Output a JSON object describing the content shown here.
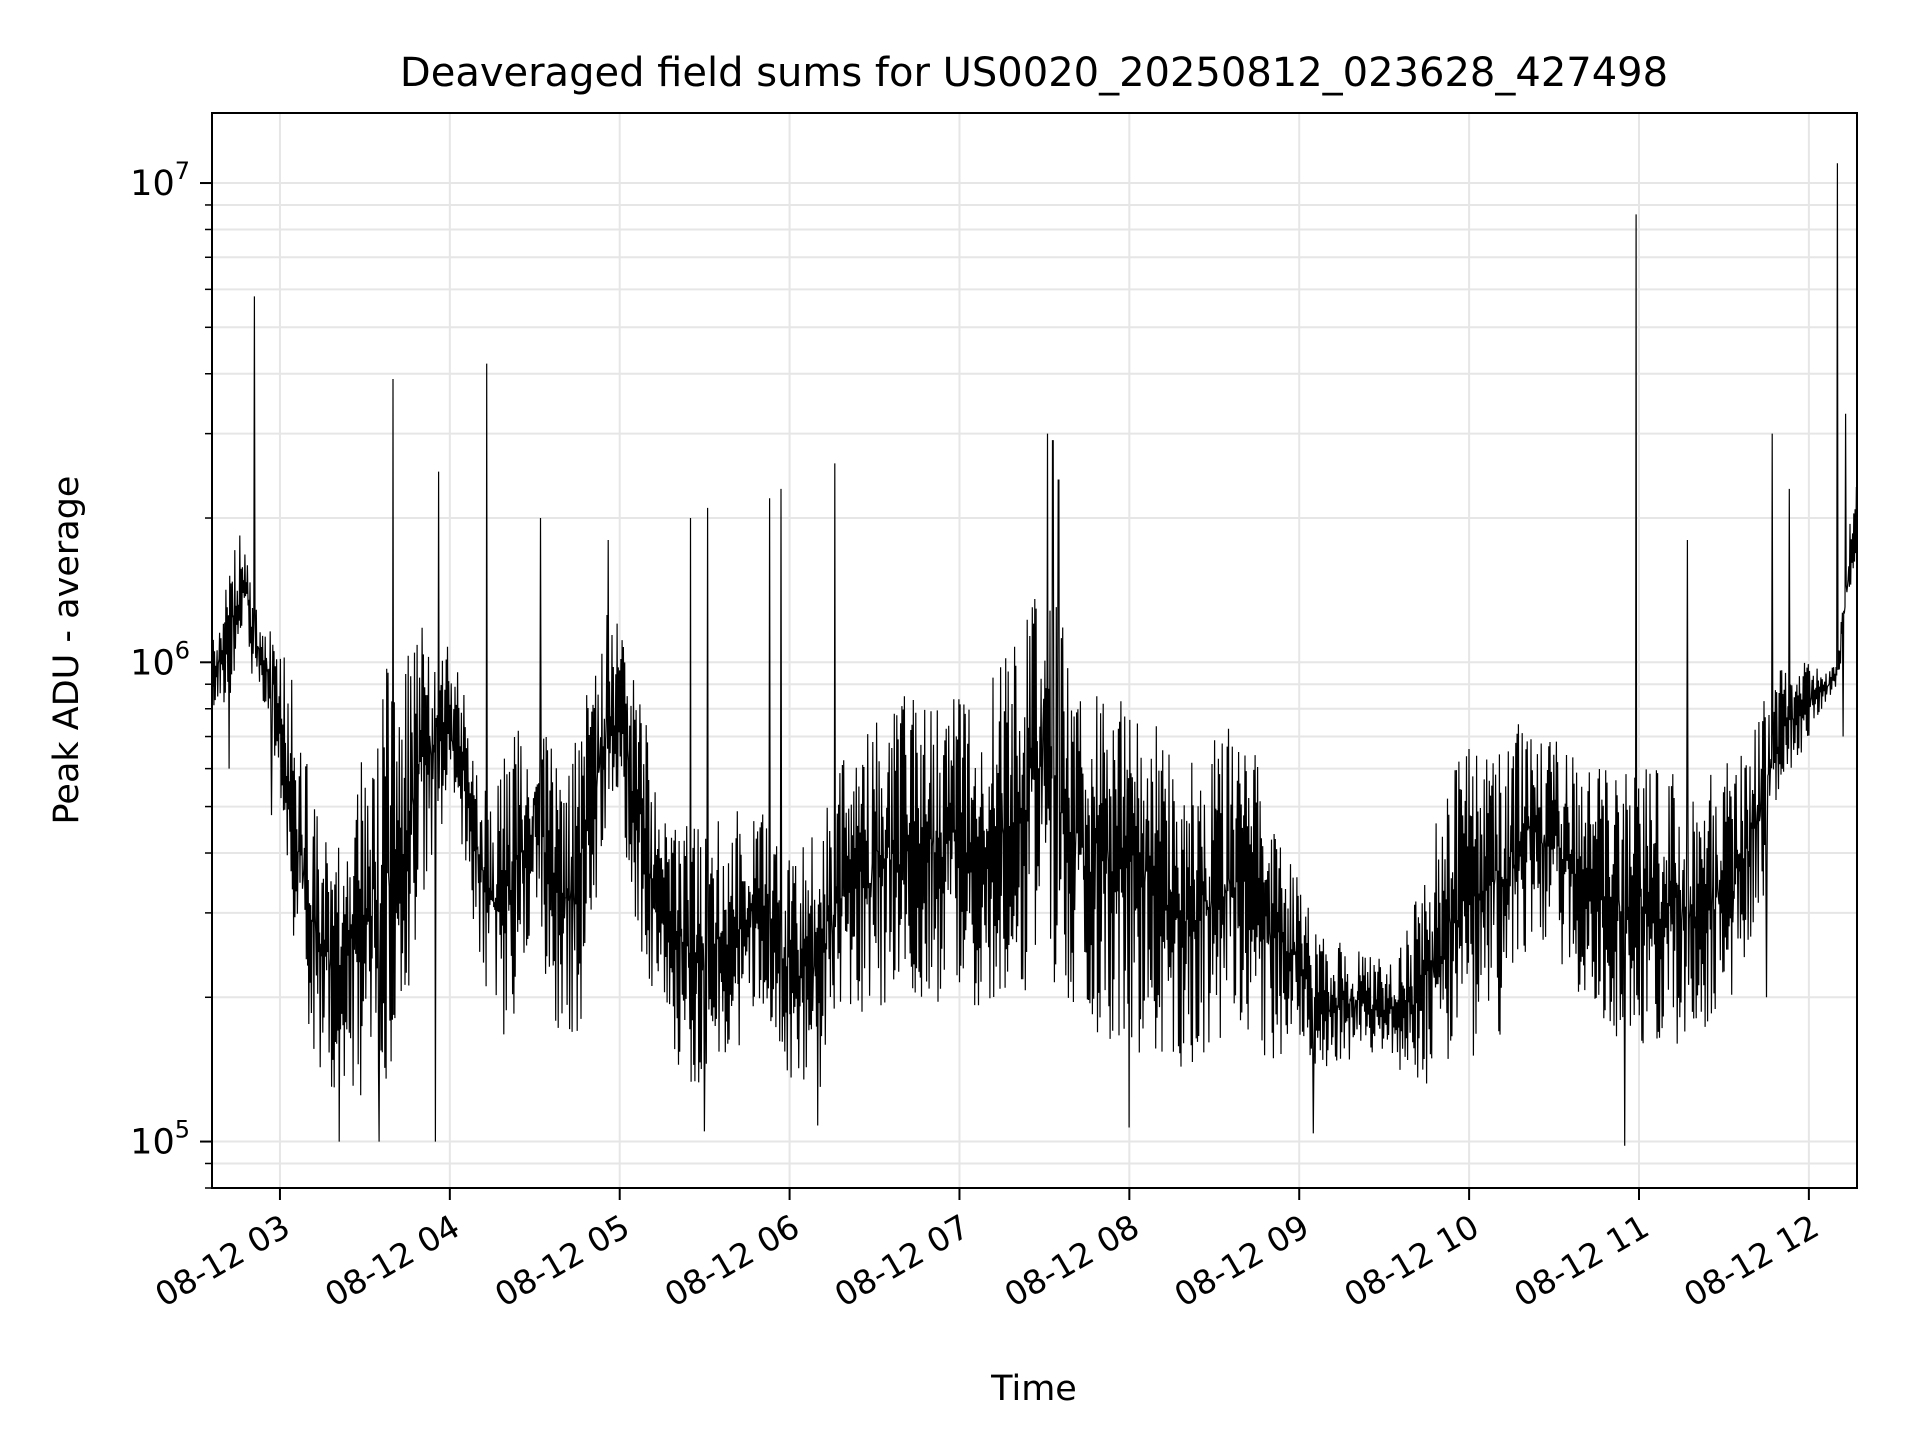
{
  "chart_data": {
    "type": "line",
    "title": "Deaveraged field sums for US0020_20250812_023628_427498",
    "xlabel": "Time",
    "ylabel": "Peak ADU - average",
    "y_scale": "log",
    "x_tick_labels": [
      "08-12 03",
      "08-12 04",
      "08-12 05",
      "08-12 06",
      "08-12 07",
      "08-12 08",
      "08-12 09",
      "08-12 10",
      "08-12 11",
      "08-12 12"
    ],
    "y_ticks": [
      {
        "base": "10",
        "exp": "5",
        "value": 100000
      },
      {
        "base": "10",
        "exp": "6",
        "value": 1000000
      },
      {
        "base": "10",
        "exp": "7",
        "value": 10000000
      }
    ],
    "xlim": [
      "2025-08-12 02:36",
      "2025-08-12 12:17"
    ],
    "ylim": [
      80000,
      14000000
    ],
    "grid": true,
    "line_color": "#000000",
    "series": [
      {
        "x": [
          "2025-08-12 02:36",
          "2025-08-12 02:45",
          "2025-08-12 02:48",
          "2025-08-12 02:50",
          "2025-08-12 02:53",
          "2025-08-12 02:57",
          "2025-08-12 03:00",
          "2025-08-12 03:05",
          "2025-08-12 03:10",
          "2025-08-12 03:15",
          "2025-08-12 03:20",
          "2025-08-12 03:25",
          "2025-08-12 03:30",
          "2025-08-12 03:35",
          "2025-08-12 03:40",
          "2025-08-12 03:45",
          "2025-08-12 03:50",
          "2025-08-12 03:55",
          "2025-08-12 04:00",
          "2025-08-12 04:05",
          "2025-08-12 04:10",
          "2025-08-12 04:15",
          "2025-08-12 04:20",
          "2025-08-12 04:25",
          "2025-08-12 04:30",
          "2025-08-12 04:35",
          "2025-08-12 04:40",
          "2025-08-12 04:45",
          "2025-08-12 04:50",
          "2025-08-12 04:55",
          "2025-08-12 05:00",
          "2025-08-12 05:05",
          "2025-08-12 05:10",
          "2025-08-12 05:15",
          "2025-08-12 05:20",
          "2025-08-12 05:25",
          "2025-08-12 05:30",
          "2025-08-12 05:35",
          "2025-08-12 05:40",
          "2025-08-12 05:45",
          "2025-08-12 05:50",
          "2025-08-12 05:55",
          "2025-08-12 06:00",
          "2025-08-12 06:05",
          "2025-08-12 06:10",
          "2025-08-12 06:15",
          "2025-08-12 06:20",
          "2025-08-12 06:25",
          "2025-08-12 06:30",
          "2025-08-12 06:35",
          "2025-08-12 06:40",
          "2025-08-12 06:45",
          "2025-08-12 06:50",
          "2025-08-12 06:55",
          "2025-08-12 07:00",
          "2025-08-12 07:05",
          "2025-08-12 07:10",
          "2025-08-12 07:15",
          "2025-08-12 07:20",
          "2025-08-12 07:25",
          "2025-08-12 07:30",
          "2025-08-12 07:35",
          "2025-08-12 07:40",
          "2025-08-12 07:45",
          "2025-08-12 07:50",
          "2025-08-12 07:55",
          "2025-08-12 08:00",
          "2025-08-12 08:05",
          "2025-08-12 08:10",
          "2025-08-12 08:15",
          "2025-08-12 08:20",
          "2025-08-12 08:25",
          "2025-08-12 08:30",
          "2025-08-12 08:35",
          "2025-08-12 08:40",
          "2025-08-12 08:45",
          "2025-08-12 08:50",
          "2025-08-12 08:55",
          "2025-08-12 09:00",
          "2025-08-12 09:05",
          "2025-08-12 09:10",
          "2025-08-12 09:15",
          "2025-08-12 09:20",
          "2025-08-12 09:25",
          "2025-08-12 09:30",
          "2025-08-12 09:35",
          "2025-08-12 09:40",
          "2025-08-12 09:45",
          "2025-08-12 09:50",
          "2025-08-12 09:55",
          "2025-08-12 10:00",
          "2025-08-12 10:05",
          "2025-08-12 10:10",
          "2025-08-12 10:15",
          "2025-08-12 10:20",
          "2025-08-12 10:25",
          "2025-08-12 10:30",
          "2025-08-12 10:35",
          "2025-08-12 10:40",
          "2025-08-12 10:45",
          "2025-08-12 10:50",
          "2025-08-12 10:55",
          "2025-08-12 11:00",
          "2025-08-12 11:05",
          "2025-08-12 11:10",
          "2025-08-12 11:15",
          "2025-08-12 11:20",
          "2025-08-12 11:25",
          "2025-08-12 11:30",
          "2025-08-12 11:35",
          "2025-08-12 11:40",
          "2025-08-12 11:45",
          "2025-08-12 11:50",
          "2025-08-12 11:55",
          "2025-08-12 12:00",
          "2025-08-12 12:05",
          "2025-08-12 12:10",
          "2025-08-12 12:15",
          "2025-08-12 12:17"
        ],
        "low": [
          750000,
          900000,
          1300000,
          900000,
          850000,
          700000,
          500000,
          250000,
          170000,
          130000,
          125000,
          120000,
          120000,
          125000,
          130000,
          200000,
          300000,
          400000,
          500000,
          350000,
          250000,
          170000,
          160000,
          200000,
          300000,
          200000,
          150000,
          160000,
          250000,
          400000,
          500000,
          300000,
          200000,
          170000,
          140000,
          125000,
          130000,
          145000,
          150000,
          170000,
          180000,
          160000,
          130000,
          120000,
          125000,
          150000,
          170000,
          180000,
          190000,
          190000,
          200000,
          200000,
          200000,
          190000,
          200000,
          190000,
          185000,
          180000,
          180000,
          200000,
          250000,
          200000,
          180000,
          170000,
          160000,
          160000,
          160000,
          150000,
          140000,
          135000,
          140000,
          150000,
          160000,
          170000,
          180000,
          150000,
          140000,
          150000,
          160000,
          140000,
          140000,
          145000,
          150000,
          150000,
          145000,
          140000,
          130000,
          125000,
          130000,
          140000,
          145000,
          150000,
          160000,
          200000,
          250000,
          250000,
          250000,
          220000,
          200000,
          180000,
          170000,
          160000,
          160000,
          160000,
          160000,
          160000,
          160000,
          170000,
          180000,
          200000,
          250000,
          350000,
          500000,
          600000,
          700000,
          800000,
          900000,
          1300000,
          1400000
        ],
        "high": [
          1100000,
          1900000,
          1700000,
          1400000,
          1300000,
          1200000,
          1100000,
          900000,
          600000,
          450000,
          400000,
          550000,
          800000,
          950000,
          1000000,
          1100000,
          1200000,
          1200000,
          1100000,
          900000,
          700000,
          600000,
          650000,
          750000,
          800000,
          700000,
          600000,
          700000,
          1000000,
          1300000,
          1200000,
          950000,
          750000,
          600000,
          500000,
          450000,
          450000,
          480000,
          500000,
          550000,
          500000,
          450000,
          400000,
          420000,
          450000,
          550000,
          650000,
          700000,
          750000,
          800000,
          850000,
          900000,
          900000,
          850000,
          900000,
          950000,
          1000000,
          1050000,
          1200000,
          1600000,
          1900000,
          1300000,
          1000000,
          950000,
          900000,
          850000,
          900000,
          850000,
          750000,
          650000,
          600000,
          650000,
          700000,
          750000,
          750000,
          650000,
          550000,
          450000,
          350000,
          300000,
          260000,
          260000,
          250000,
          250000,
          250000,
          250000,
          300000,
          400000,
          500000,
          600000,
          700000,
          750000,
          750000,
          750000,
          750000,
          700000,
          700000,
          650000,
          620000,
          600000,
          600000,
          600000,
          600000,
          600000,
          600000,
          580000,
          580000,
          600000,
          620000,
          650000,
          750000,
          900000,
          1000000,
          1000000,
          1000000,
          950000,
          1000000,
          2200000,
          2400000
        ],
        "spikes": [
          {
            "x": "2025-08-12 02:51",
            "y": 5800000
          },
          {
            "x": "2025-08-12 03:40",
            "y": 3900000
          },
          {
            "x": "2025-08-12 03:56",
            "y": 2500000
          },
          {
            "x": "2025-08-12 04:13",
            "y": 4200000
          },
          {
            "x": "2025-08-12 04:32",
            "y": 2000000
          },
          {
            "x": "2025-08-12 04:56",
            "y": 1800000
          },
          {
            "x": "2025-08-12 05:25",
            "y": 2000000
          },
          {
            "x": "2025-08-12 05:31",
            "y": 2100000
          },
          {
            "x": "2025-08-12 05:53",
            "y": 2200000
          },
          {
            "x": "2025-08-12 05:57",
            "y": 2300000
          },
          {
            "x": "2025-08-12 06:16",
            "y": 2600000
          },
          {
            "x": "2025-08-12 07:31",
            "y": 3000000
          },
          {
            "x": "2025-08-12 07:33",
            "y": 2900000
          },
          {
            "x": "2025-08-12 07:35",
            "y": 2400000
          },
          {
            "x": "2025-08-12 10:59",
            "y": 8600000
          },
          {
            "x": "2025-08-12 11:17",
            "y": 1800000
          },
          {
            "x": "2025-08-12 11:47",
            "y": 3000000
          },
          {
            "x": "2025-08-12 11:53",
            "y": 2300000
          },
          {
            "x": "2025-08-12 12:10",
            "y": 11000000
          },
          {
            "x": "2025-08-12 12:13",
            "y": 3300000
          }
        ],
        "dips": [
          {
            "x": "2025-08-12 02:42",
            "y": 600000
          },
          {
            "x": "2025-08-12 02:57",
            "y": 480000
          },
          {
            "x": "2025-08-12 03:21",
            "y": 100000
          },
          {
            "x": "2025-08-12 03:35",
            "y": 100000
          },
          {
            "x": "2025-08-12 03:55",
            "y": 100000
          },
          {
            "x": "2025-08-12 05:30",
            "y": 105000
          },
          {
            "x": "2025-08-12 06:10",
            "y": 108000
          },
          {
            "x": "2025-08-12 08:00",
            "y": 107000
          },
          {
            "x": "2025-08-12 09:05",
            "y": 104000
          },
          {
            "x": "2025-08-12 10:55",
            "y": 98000
          },
          {
            "x": "2025-08-12 11:45",
            "y": 200000
          },
          {
            "x": "2025-08-12 12:12",
            "y": 700000
          }
        ]
      }
    ]
  }
}
